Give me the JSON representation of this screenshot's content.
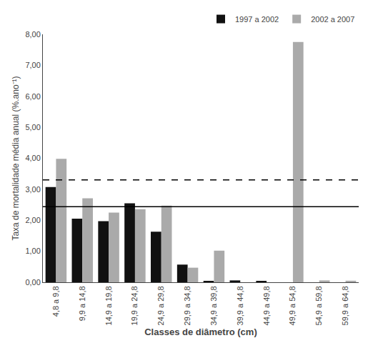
{
  "chart_data": {
    "type": "bar",
    "categories": [
      "4,8 a 9,8",
      "9,9 a 14,8",
      "14,9 a 19,8",
      "19,9 a 24,8",
      "24,9 a 29,8",
      "29,9 a 34,8",
      "34,9 a 39,8",
      "39,9 a 44,8",
      "44,9 a 49,8",
      "49,9 a 54,8",
      "54,9 a 59,8",
      "59,9 a 64,8"
    ],
    "series": [
      {
        "name": "1997 a 2002",
        "color": "#111111",
        "values": [
          3.07,
          2.05,
          1.97,
          2.55,
          1.63,
          0.57,
          0.03,
          0.06,
          0.04,
          0.0,
          0.0,
          0.0
        ]
      },
      {
        "name": "2002 a 2007",
        "color": "#aaaaaa",
        "values": [
          3.98,
          2.71,
          2.25,
          2.36,
          2.47,
          0.47,
          1.02,
          0.0,
          0.0,
          7.75,
          0.06,
          0.05
        ]
      }
    ],
    "hlines": [
      {
        "value": 2.44,
        "color": "#000000",
        "line_style": "solid"
      },
      {
        "value": 3.3,
        "color": "#000000",
        "line_style": "dashed"
      }
    ],
    "xlabel": "Classes de diâmetro (cm)",
    "ylabel": "Taxa de mortalidade média anual (%.ano⁻¹)",
    "ylim": [
      0.0,
      8.0
    ],
    "yticks": [
      {
        "value": 0.0,
        "label": "0,00"
      },
      {
        "value": 1.0,
        "label": "1,00"
      },
      {
        "value": 2.0,
        "label": "2,00"
      },
      {
        "value": 3.0,
        "label": "3,00"
      },
      {
        "value": 4.0,
        "label": "4,00"
      },
      {
        "value": 5.0,
        "label": "5,00"
      },
      {
        "value": 6.0,
        "label": "6,00"
      },
      {
        "value": 7.0,
        "label": "7,00"
      },
      {
        "value": 8.0,
        "label": "8,00"
      }
    ],
    "grid": false,
    "legend": "upper right"
  }
}
